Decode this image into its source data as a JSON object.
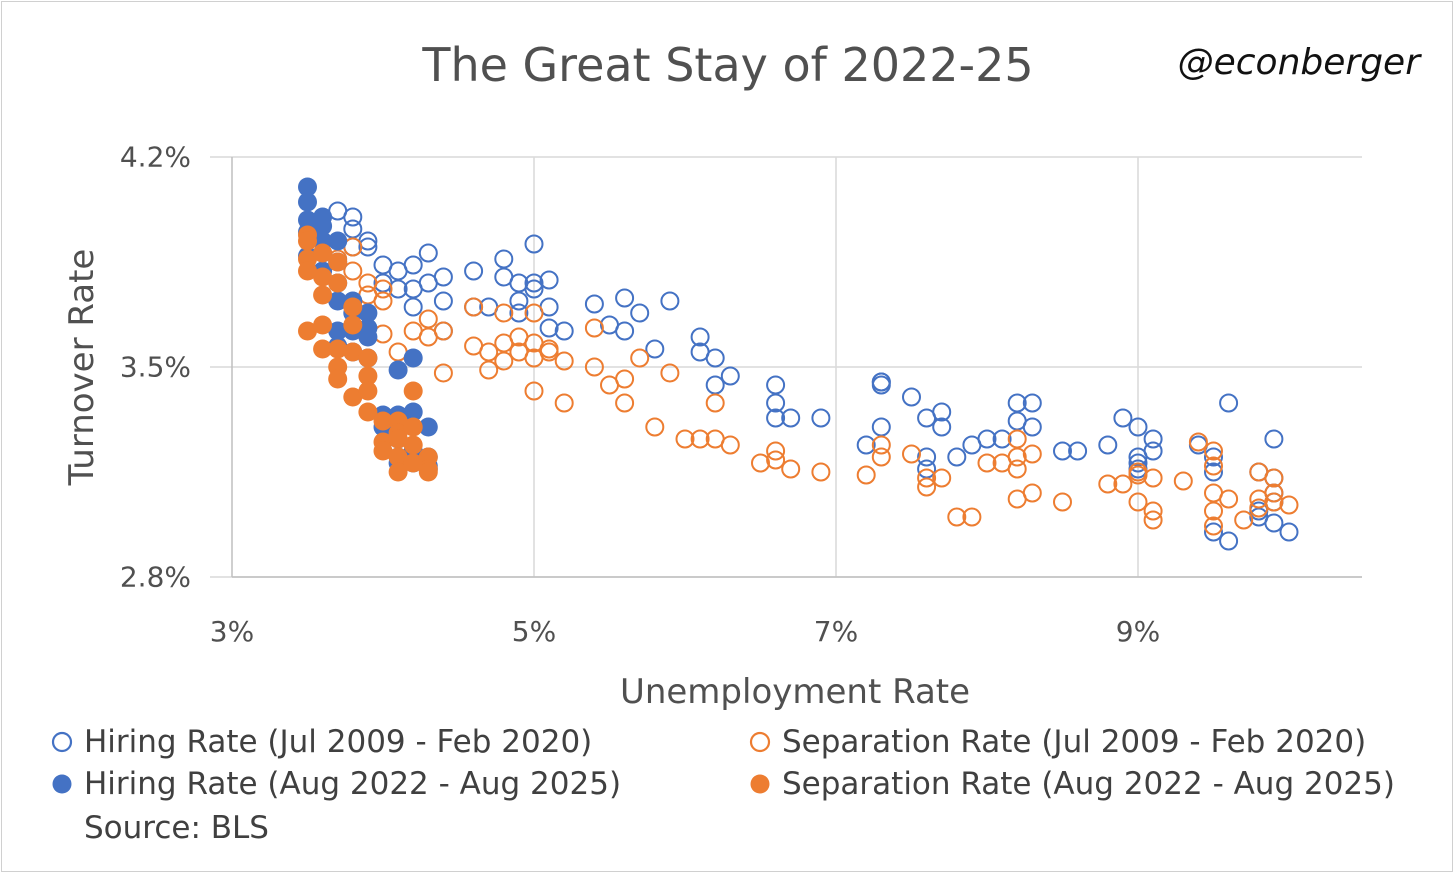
{
  "chart_data": {
    "type": "scatter",
    "title": "The Great Stay of 2022-25",
    "watermark": "@econberger",
    "xlabel": "Unemployment Rate",
    "ylabel": "Turnover Rate",
    "xlim": [
      3,
      10.5
    ],
    "ylim": [
      2.8,
      4.2
    ],
    "x_ticks": [
      {
        "value": 3,
        "label": "3%"
      },
      {
        "value": 5,
        "label": "5%"
      },
      {
        "value": 7,
        "label": "7%"
      },
      {
        "value": 9,
        "label": "9%"
      }
    ],
    "y_ticks": [
      {
        "value": 2.8,
        "label": "2.8%"
      },
      {
        "value": 3.5,
        "label": "3.5%"
      },
      {
        "value": 4.2,
        "label": "4.2%"
      }
    ],
    "grid": true,
    "legend_position": "bottom",
    "source": "Source: BLS",
    "series": [
      {
        "name": "Hiring Rate (Jul 2009 - Feb 2020)",
        "color": "#4472c4",
        "filled": false,
        "points": [
          [
            9.5,
            2.95
          ],
          [
            9.6,
            2.92
          ],
          [
            9.9,
            2.98
          ],
          [
            10.0,
            2.95
          ],
          [
            9.8,
            3.02
          ],
          [
            9.8,
            3.0
          ],
          [
            9.9,
            3.05
          ],
          [
            9.9,
            3.08
          ],
          [
            9.8,
            3.15
          ],
          [
            9.9,
            3.13
          ],
          [
            9.6,
            3.38
          ],
          [
            9.9,
            3.26
          ],
          [
            9.5,
            3.2
          ],
          [
            9.4,
            3.24
          ],
          [
            9.5,
            3.15
          ],
          [
            9.1,
            3.26
          ],
          [
            9.1,
            3.22
          ],
          [
            9.0,
            3.18
          ],
          [
            9.0,
            3.2
          ],
          [
            9.0,
            3.3
          ],
          [
            8.9,
            3.33
          ],
          [
            9.0,
            3.16
          ],
          [
            8.8,
            3.24
          ],
          [
            8.6,
            3.22
          ],
          [
            8.5,
            3.22
          ],
          [
            8.3,
            3.38
          ],
          [
            8.2,
            3.38
          ],
          [
            8.2,
            3.32
          ],
          [
            8.3,
            3.3
          ],
          [
            8.1,
            3.26
          ],
          [
            8.0,
            3.26
          ],
          [
            7.9,
            3.24
          ],
          [
            7.8,
            3.2
          ],
          [
            7.7,
            3.35
          ],
          [
            7.7,
            3.3
          ],
          [
            7.6,
            3.2
          ],
          [
            7.6,
            3.16
          ],
          [
            7.6,
            3.33
          ],
          [
            7.5,
            3.4
          ],
          [
            7.3,
            3.3
          ],
          [
            7.2,
            3.24
          ],
          [
            7.3,
            3.45
          ],
          [
            7.3,
            3.45
          ],
          [
            7.3,
            3.44
          ],
          [
            6.9,
            3.33
          ],
          [
            6.7,
            3.33
          ],
          [
            6.6,
            3.38
          ],
          [
            6.6,
            3.33
          ],
          [
            6.6,
            3.44
          ],
          [
            6.3,
            3.47
          ],
          [
            6.2,
            3.53
          ],
          [
            6.2,
            3.44
          ],
          [
            6.1,
            3.6
          ],
          [
            6.1,
            3.55
          ],
          [
            5.9,
            3.72
          ],
          [
            5.8,
            3.56
          ],
          [
            5.7,
            3.68
          ],
          [
            5.6,
            3.62
          ],
          [
            5.6,
            3.73
          ],
          [
            5.5,
            3.64
          ],
          [
            5.4,
            3.71
          ],
          [
            5.2,
            3.62
          ],
          [
            5.1,
            3.63
          ],
          [
            5.1,
            3.7
          ],
          [
            5.1,
            3.79
          ],
          [
            5.0,
            3.78
          ],
          [
            5.0,
            3.91
          ],
          [
            5.0,
            3.76
          ],
          [
            4.9,
            3.78
          ],
          [
            4.9,
            3.68
          ],
          [
            4.9,
            3.72
          ],
          [
            4.8,
            3.86
          ],
          [
            4.8,
            3.8
          ],
          [
            4.7,
            3.7
          ],
          [
            4.6,
            3.82
          ],
          [
            4.6,
            3.7
          ],
          [
            4.4,
            3.8
          ],
          [
            4.4,
            3.72
          ],
          [
            4.3,
            3.88
          ],
          [
            4.3,
            3.78
          ],
          [
            4.2,
            3.76
          ],
          [
            4.2,
            3.84
          ],
          [
            4.1,
            3.82
          ],
          [
            4.1,
            3.76
          ],
          [
            4.0,
            3.78
          ],
          [
            4.0,
            3.84
          ],
          [
            3.9,
            3.9
          ],
          [
            3.9,
            3.92
          ],
          [
            3.8,
            3.9
          ],
          [
            3.8,
            3.96
          ],
          [
            3.8,
            4.0
          ],
          [
            3.7,
            4.02
          ],
          [
            4.4,
            3.62
          ],
          [
            4.2,
            3.7
          ]
        ]
      },
      {
        "name": "Separation Rate (Jul 2009 - Feb 2020)",
        "color": "#ed7d31",
        "filled": false,
        "points": [
          [
            9.5,
            2.97
          ],
          [
            9.5,
            3.02
          ],
          [
            9.6,
            3.06
          ],
          [
            9.7,
            2.99
          ],
          [
            9.8,
            3.03
          ],
          [
            9.8,
            3.06
          ],
          [
            9.9,
            3.05
          ],
          [
            10.0,
            3.04
          ],
          [
            9.8,
            3.15
          ],
          [
            9.9,
            3.13
          ],
          [
            9.9,
            3.08
          ],
          [
            9.5,
            3.08
          ],
          [
            9.5,
            3.17
          ],
          [
            9.5,
            3.22
          ],
          [
            9.4,
            3.25
          ],
          [
            9.3,
            3.12
          ],
          [
            9.1,
            3.02
          ],
          [
            9.1,
            2.99
          ],
          [
            9.0,
            3.05
          ],
          [
            9.1,
            3.13
          ],
          [
            9.0,
            3.15
          ],
          [
            9.0,
            3.14
          ],
          [
            8.9,
            3.11
          ],
          [
            8.8,
            3.11
          ],
          [
            8.5,
            3.05
          ],
          [
            8.3,
            3.08
          ],
          [
            8.2,
            3.06
          ],
          [
            8.2,
            3.16
          ],
          [
            8.3,
            3.21
          ],
          [
            8.2,
            3.2
          ],
          [
            8.2,
            3.26
          ],
          [
            8.0,
            3.18
          ],
          [
            8.1,
            3.18
          ],
          [
            7.9,
            3.0
          ],
          [
            7.8,
            3.0
          ],
          [
            7.7,
            3.13
          ],
          [
            7.6,
            3.13
          ],
          [
            7.6,
            3.1
          ],
          [
            7.5,
            3.21
          ],
          [
            7.3,
            3.2
          ],
          [
            7.3,
            3.24
          ],
          [
            7.2,
            3.14
          ],
          [
            6.9,
            3.15
          ],
          [
            6.7,
            3.16
          ],
          [
            6.6,
            3.19
          ],
          [
            6.6,
            3.22
          ],
          [
            6.5,
            3.18
          ],
          [
            6.3,
            3.24
          ],
          [
            6.2,
            3.26
          ],
          [
            6.2,
            3.38
          ],
          [
            6.1,
            3.26
          ],
          [
            6.0,
            3.26
          ],
          [
            5.9,
            3.48
          ],
          [
            5.8,
            3.3
          ],
          [
            5.7,
            3.53
          ],
          [
            5.6,
            3.46
          ],
          [
            5.6,
            3.38
          ],
          [
            5.5,
            3.44
          ],
          [
            5.4,
            3.5
          ],
          [
            5.4,
            3.63
          ],
          [
            5.2,
            3.38
          ],
          [
            5.2,
            3.52
          ],
          [
            5.0,
            3.58
          ],
          [
            5.1,
            3.55
          ],
          [
            5.0,
            3.53
          ],
          [
            4.9,
            3.55
          ],
          [
            4.9,
            3.6
          ],
          [
            4.8,
            3.52
          ],
          [
            4.8,
            3.68
          ],
          [
            4.7,
            3.55
          ],
          [
            4.7,
            3.49
          ],
          [
            4.6,
            3.57
          ],
          [
            4.6,
            3.7
          ],
          [
            4.4,
            3.48
          ],
          [
            4.4,
            3.62
          ],
          [
            4.3,
            3.66
          ],
          [
            4.3,
            3.6
          ],
          [
            4.2,
            3.62
          ],
          [
            4.1,
            3.55
          ],
          [
            4.0,
            3.61
          ],
          [
            4.0,
            3.72
          ],
          [
            4.0,
            3.76
          ],
          [
            3.9,
            3.78
          ],
          [
            3.9,
            3.74
          ],
          [
            3.8,
            3.82
          ],
          [
            3.8,
            3.9
          ],
          [
            3.7,
            3.86
          ],
          [
            5.0,
            3.68
          ],
          [
            4.8,
            3.58
          ],
          [
            5.0,
            3.42
          ],
          [
            5.1,
            3.56
          ]
        ]
      },
      {
        "name": "Hiring Rate (Aug 2022 - Aug 2025)",
        "color": "#4472c4",
        "filled": true,
        "points": [
          [
            3.5,
            4.1
          ],
          [
            3.5,
            4.05
          ],
          [
            3.5,
            3.99
          ],
          [
            3.5,
            3.95
          ],
          [
            3.5,
            3.87
          ],
          [
            3.6,
            4.0
          ],
          [
            3.6,
            3.97
          ],
          [
            3.6,
            3.92
          ],
          [
            3.6,
            3.88
          ],
          [
            3.6,
            3.82
          ],
          [
            3.7,
            3.92
          ],
          [
            3.7,
            3.85
          ],
          [
            3.7,
            3.78
          ],
          [
            3.7,
            3.72
          ],
          [
            3.7,
            3.62
          ],
          [
            3.7,
            3.57
          ],
          [
            3.8,
            3.72
          ],
          [
            3.8,
            3.68
          ],
          [
            3.8,
            3.62
          ],
          [
            3.8,
            3.55
          ],
          [
            3.9,
            3.68
          ],
          [
            3.9,
            3.63
          ],
          [
            3.9,
            3.6
          ],
          [
            3.9,
            3.53
          ],
          [
            4.0,
            3.34
          ],
          [
            4.0,
            3.3
          ],
          [
            4.1,
            3.49
          ],
          [
            4.1,
            3.34
          ],
          [
            4.1,
            3.26
          ],
          [
            4.1,
            3.2
          ],
          [
            4.1,
            3.18
          ],
          [
            4.2,
            3.53
          ],
          [
            4.2,
            3.35
          ],
          [
            4.2,
            3.22
          ],
          [
            4.2,
            3.18
          ],
          [
            4.3,
            3.3
          ],
          [
            4.3,
            3.2
          ],
          [
            4.3,
            3.17
          ],
          [
            4.3,
            3.16
          ]
        ]
      },
      {
        "name": "Separation Rate (Aug 2022 - Aug 2025)",
        "color": "#ed7d31",
        "filled": true,
        "points": [
          [
            3.5,
            3.94
          ],
          [
            3.5,
            3.92
          ],
          [
            3.5,
            3.86
          ],
          [
            3.5,
            3.82
          ],
          [
            3.5,
            3.62
          ],
          [
            3.6,
            3.88
          ],
          [
            3.6,
            3.8
          ],
          [
            3.6,
            3.74
          ],
          [
            3.6,
            3.64
          ],
          [
            3.6,
            3.56
          ],
          [
            3.7,
            3.85
          ],
          [
            3.7,
            3.78
          ],
          [
            3.7,
            3.56
          ],
          [
            3.7,
            3.5
          ],
          [
            3.7,
            3.46
          ],
          [
            3.8,
            3.7
          ],
          [
            3.8,
            3.64
          ],
          [
            3.8,
            3.55
          ],
          [
            3.8,
            3.4
          ],
          [
            3.9,
            3.53
          ],
          [
            3.9,
            3.47
          ],
          [
            3.9,
            3.42
          ],
          [
            3.9,
            3.35
          ],
          [
            4.0,
            3.32
          ],
          [
            4.0,
            3.25
          ],
          [
            4.0,
            3.22
          ],
          [
            4.1,
            3.32
          ],
          [
            4.1,
            3.28
          ],
          [
            4.1,
            3.26
          ],
          [
            4.1,
            3.2
          ],
          [
            4.1,
            3.15
          ],
          [
            4.2,
            3.42
          ],
          [
            4.2,
            3.3
          ],
          [
            4.2,
            3.24
          ],
          [
            4.2,
            3.18
          ],
          [
            4.3,
            3.2
          ],
          [
            4.3,
            3.16
          ],
          [
            4.3,
            3.15
          ]
        ]
      }
    ]
  }
}
